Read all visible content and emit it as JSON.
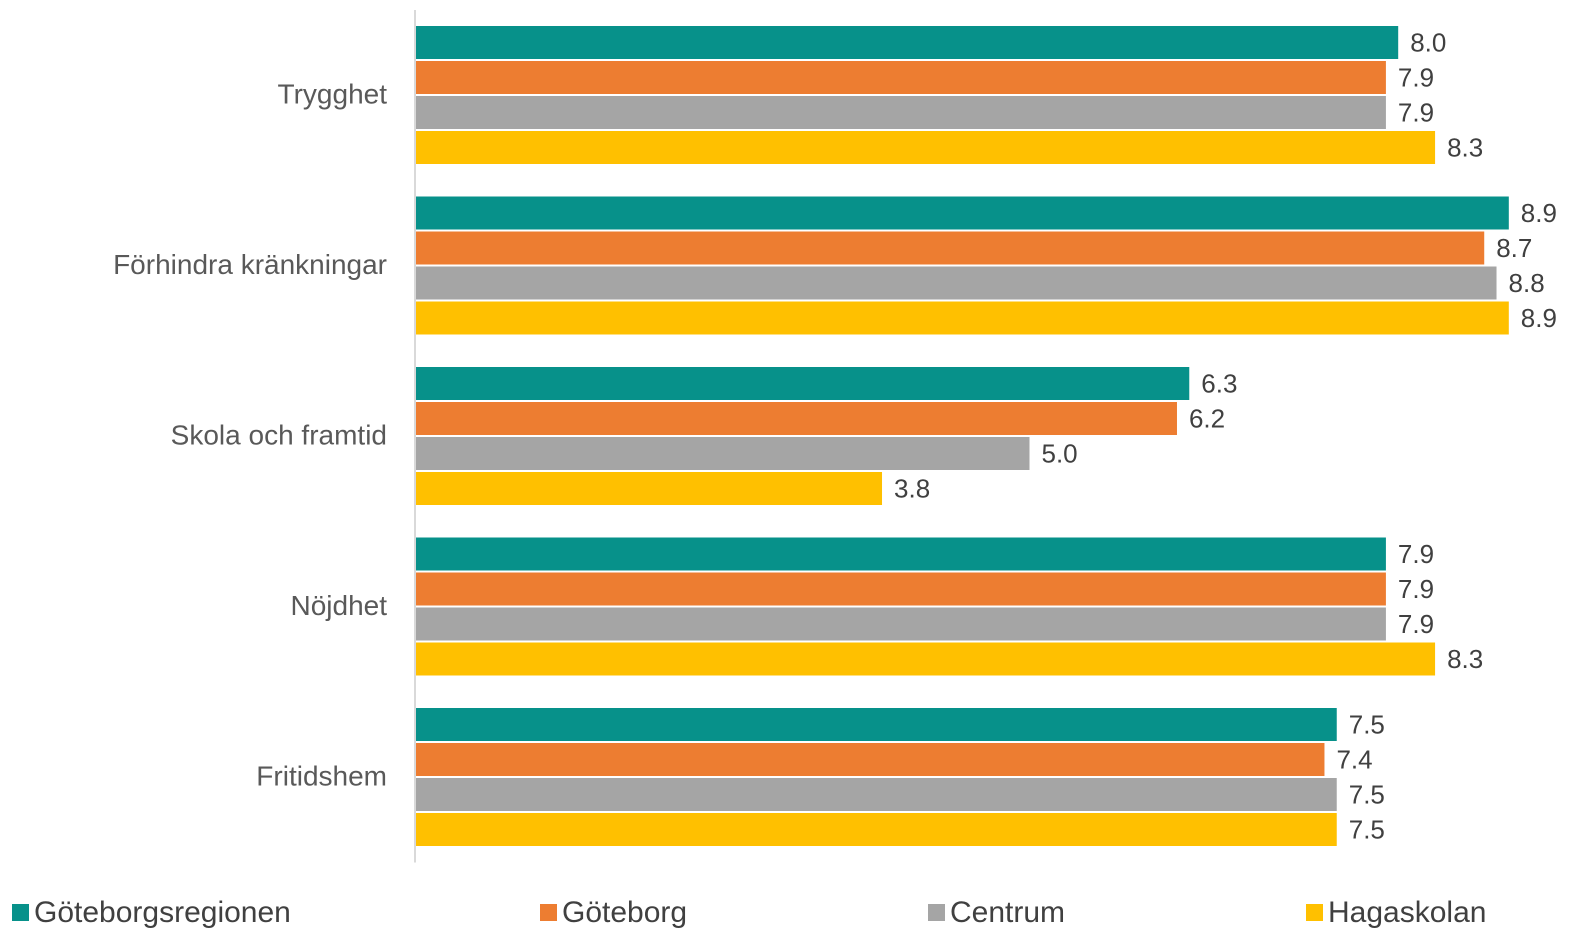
{
  "chart_data": {
    "type": "bar",
    "orientation": "horizontal",
    "categories": [
      "Trygghet",
      "Förhindra kränkningar",
      "Skola och framtid",
      "Nöjdhet",
      "Fritidshem"
    ],
    "series": [
      {
        "name": "Göteborgsregionen",
        "color": "#07918A",
        "values": [
          8.0,
          8.9,
          6.3,
          7.9,
          7.5
        ],
        "labels": [
          "8.0",
          "8.9",
          "6.3",
          "7.9",
          "7.5"
        ]
      },
      {
        "name": "Göteborg",
        "color": "#ED7D31",
        "values": [
          7.9,
          8.7,
          6.2,
          7.9,
          7.4
        ],
        "labels": [
          "7.9",
          "8.7",
          "6.2",
          "7.9",
          "7.4"
        ]
      },
      {
        "name": "Centrum",
        "color": "#A5A5A5",
        "values": [
          7.9,
          8.8,
          5.0,
          7.9,
          7.5
        ],
        "labels": [
          "7.9",
          "8.8",
          "5.0",
          "7.9",
          "7.5"
        ]
      },
      {
        "name": "Hagaskolan",
        "color": "#FFC000",
        "values": [
          8.3,
          8.9,
          3.8,
          8.3,
          7.5
        ],
        "labels": [
          "8.3",
          "8.9",
          "3.8",
          "8.3",
          "7.5"
        ]
      }
    ],
    "xlim": [
      0,
      10
    ],
    "grid": false,
    "legend_position": "bottom",
    "data_labels": true
  }
}
